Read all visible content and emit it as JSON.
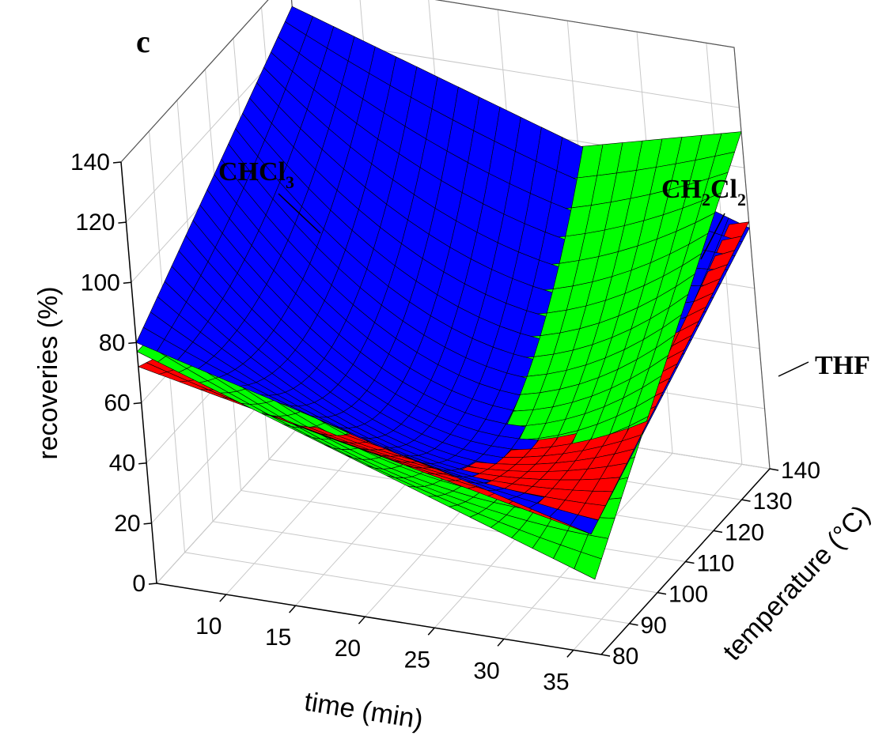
{
  "panel_label": "c",
  "chart_data": {
    "type": "surface3d",
    "x": {
      "label": "time (min)",
      "ticks": [
        10,
        15,
        20,
        25,
        30,
        35
      ],
      "range": [
        5,
        37
      ]
    },
    "y": {
      "label": "temperature (°C)",
      "ticks": [
        80,
        90,
        100,
        110,
        120,
        130,
        140
      ],
      "range": [
        80,
        140
      ]
    },
    "z": {
      "label": "recoveries (%)",
      "ticks": [
        0,
        20,
        40,
        60,
        80,
        100,
        120,
        140
      ],
      "range": [
        0,
        140
      ]
    },
    "grid": true,
    "series": [
      {
        "name": "CHCl",
        "subscript": "3",
        "color": "#0000ff",
        "corners": {
          "t_min_T_min": 80,
          "t_max_T_min": 40,
          "t_min_T_max": 130,
          "t_max_T_max": 80
        },
        "center": 45
      },
      {
        "name": "CH",
        "subscript": "2",
        "name_part2": "Cl",
        "subscript2": "2",
        "color": "#00ff00",
        "corners": {
          "t_min_T_min": 77,
          "t_max_T_min": 25,
          "t_min_T_max": 75,
          "t_max_T_max": 112
        },
        "center": 40
      },
      {
        "name": "THF",
        "color": "#ff0000",
        "corners": {
          "t_min_T_min": 72,
          "t_max_T_min": 40,
          "t_min_T_max": 40,
          "t_max_T_max": 82
        },
        "center": 35
      }
    ]
  }
}
